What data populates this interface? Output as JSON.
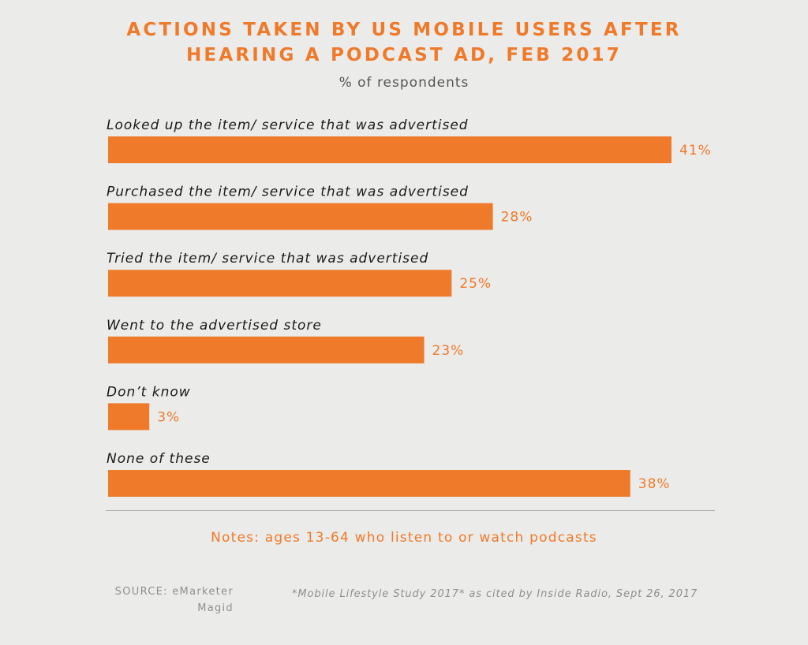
{
  "header": {
    "title_line1": "ACTIONS TAKEN BY US MOBILE USERS AFTER",
    "title_line2": "HEARING A PODCAST AD, FEB 2017",
    "subtitle": "% of respondents"
  },
  "colors": {
    "bar": "#ef7a2a",
    "label": "#1a1a1a",
    "value": "#ef7a2a",
    "background": "#ebebea"
  },
  "chart_data": {
    "type": "bar",
    "orientation": "horizontal",
    "title": "ACTIONS TAKEN BY US MOBILE USERS AFTER HEARING A PODCAST AD, FEB 2017",
    "subtitle": "% of respondents",
    "categories": [
      "Looked up the item/ service that was advertised",
      "Purchased the item/ service that was advertised",
      "Tried the item/ service that was advertised",
      "Went to the advertised store",
      "Don’t know",
      "None of these"
    ],
    "values": [
      41,
      28,
      25,
      23,
      3,
      38
    ],
    "value_labels": [
      "41%",
      "28%",
      "25%",
      "23%",
      "3%",
      "38%"
    ],
    "xlim": [
      0,
      41
    ],
    "grid": false,
    "legend": "none"
  },
  "footer": {
    "notes": "Notes: ages 13-64 who listen to or watch podcasts",
    "source_line1": "SOURCE: eMarketer",
    "source_line2": "Magid",
    "citation": "*Mobile Lifestyle Study 2017* as cited by Inside Radio, Sept 26, 2017"
  }
}
